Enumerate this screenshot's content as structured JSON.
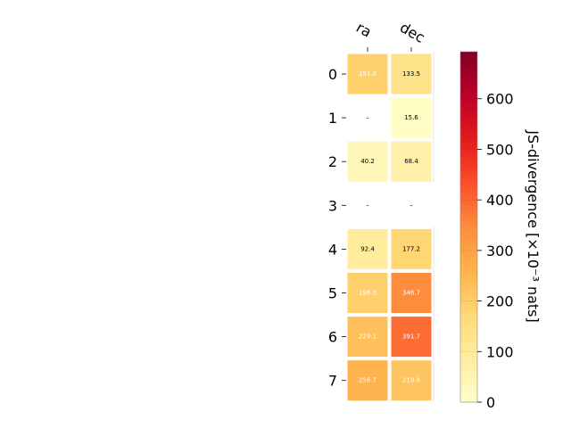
{
  "chart_data": {
    "type": "heatmap",
    "columns": [
      "ra",
      "dec"
    ],
    "rows": [
      "0",
      "1",
      "2",
      "3",
      "4",
      "5",
      "6",
      "7"
    ],
    "values": [
      [
        191.0,
        133.5
      ],
      [
        null,
        15.6
      ],
      [
        40.2,
        68.4
      ],
      [
        null,
        null
      ],
      [
        92.4,
        177.2
      ],
      [
        196.3,
        346.7
      ],
      [
        229.1,
        391.7
      ],
      [
        256.7,
        218.8
      ]
    ],
    "cell_labels": [
      [
        "191.0",
        "133.5"
      ],
      [
        "–",
        "15.6"
      ],
      [
        "40.2",
        "68.4"
      ],
      [
        "–",
        "–"
      ],
      [
        "92.4",
        "177.2"
      ],
      [
        "196.3",
        "346.7"
      ],
      [
        "229.1",
        "391.7"
      ],
      [
        "256.7",
        "218.8"
      ]
    ],
    "colorbar": {
      "label": "JS-divergence [×10⁻³ nats]",
      "min": 0,
      "max": 693,
      "ticks": [
        "0",
        "100",
        "200",
        "300",
        "400",
        "500",
        "600"
      ],
      "colormap": "YlOrRd"
    },
    "grid": false
  }
}
